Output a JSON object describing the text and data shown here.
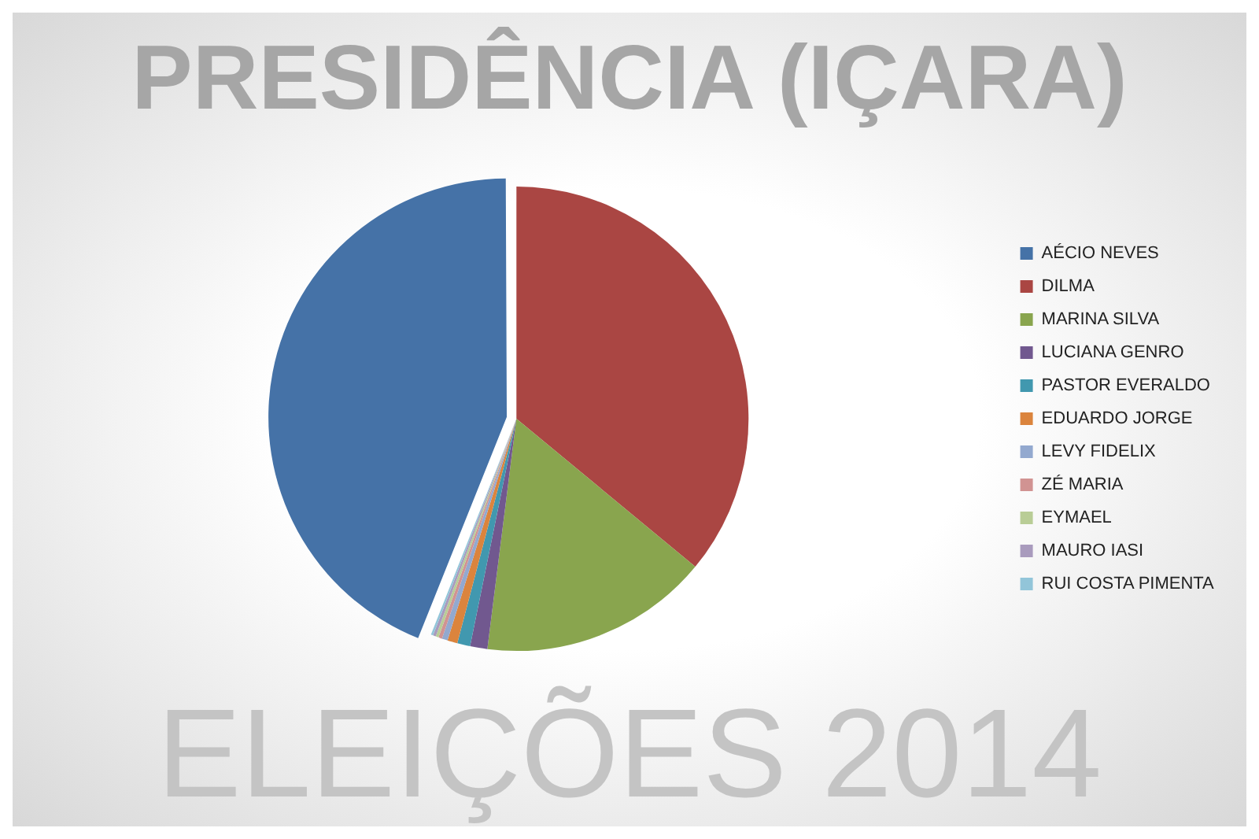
{
  "chart_data": {
    "type": "pie",
    "title": "PRESIDÊNCIA (IÇARA)",
    "categories": [
      "AÉCIO NEVES",
      "DILMA",
      "MARINA SILVA",
      "LUCIANA GENRO",
      "PASTOR EVERALDO",
      "EDUARDO JORGE",
      "LEVY FIDELIX",
      "ZÉ MARIA",
      "EYMAEL",
      "MAURO IASI",
      "RUI COSTA PIMENTA"
    ],
    "values": [
      44,
      36,
      16,
      1.2,
      0.9,
      0.7,
      0.4,
      0.25,
      0.2,
      0.2,
      0.15
    ],
    "colors": [
      "#4572a7",
      "#aa4643",
      "#89a54e",
      "#71588f",
      "#4198af",
      "#db843d",
      "#93a9cf",
      "#d19392",
      "#b9cd96",
      "#a99bbd",
      "#92c5d9"
    ],
    "legend": "right",
    "annotations": [
      "ELEIÇÕES 2014"
    ]
  }
}
